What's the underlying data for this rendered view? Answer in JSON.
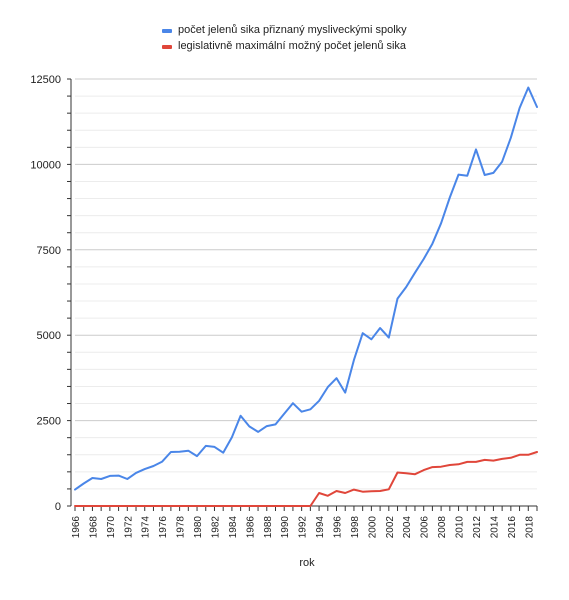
{
  "chart_data": {
    "type": "line",
    "title": "",
    "xlabel": "rok",
    "ylabel": "",
    "ylim": [
      0,
      12500
    ],
    "yticks": [
      0,
      2500,
      5000,
      7500,
      10000,
      12500
    ],
    "xlim": [
      1966,
      2019
    ],
    "xticks": [
      1966,
      1968,
      1970,
      1972,
      1974,
      1976,
      1978,
      1980,
      1982,
      1984,
      1986,
      1988,
      1990,
      1992,
      1994,
      1996,
      1998,
      2000,
      2002,
      2004,
      2006,
      2008,
      2010,
      2012,
      2014,
      2016,
      2018
    ],
    "grid": true,
    "legend": "top",
    "x": [
      1966,
      1967,
      1968,
      1969,
      1970,
      1971,
      1972,
      1973,
      1974,
      1975,
      1976,
      1977,
      1978,
      1979,
      1980,
      1981,
      1982,
      1983,
      1984,
      1985,
      1986,
      1987,
      1988,
      1989,
      1990,
      1991,
      1992,
      1993,
      1994,
      1995,
      1996,
      1997,
      1998,
      1999,
      2000,
      2001,
      2002,
      2003,
      2004,
      2005,
      2006,
      2007,
      2008,
      2009,
      2010,
      2011,
      2012,
      2013,
      2014,
      2015,
      2016,
      2017,
      2018,
      2019
    ],
    "series": [
      {
        "name": "počet jelenů sika přiznaný mysliveckými spolky",
        "color": "#4a86e8",
        "values": [
          480,
          660,
          820,
          790,
          880,
          890,
          790,
          970,
          1080,
          1170,
          1300,
          1580,
          1590,
          1620,
          1460,
          1760,
          1730,
          1560,
          2010,
          2640,
          2330,
          2170,
          2340,
          2390,
          2700,
          3010,
          2760,
          2830,
          3080,
          3480,
          3740,
          3320,
          4270,
          5060,
          4880,
          5210,
          4930,
          6070,
          6410,
          6830,
          7230,
          7680,
          8280,
          9030,
          9700,
          9670,
          10440,
          9690,
          9750,
          10080,
          10780,
          11650,
          12250,
          11680
        ]
      },
      {
        "name": "legislativně maximální možný počet jelenů sika",
        "color": "#e0463a",
        "values": [
          0,
          0,
          0,
          0,
          0,
          0,
          0,
          0,
          0,
          0,
          0,
          0,
          0,
          0,
          0,
          0,
          0,
          0,
          0,
          0,
          0,
          0,
          0,
          0,
          0,
          0,
          0,
          0,
          380,
          300,
          440,
          380,
          480,
          420,
          430,
          440,
          490,
          980,
          960,
          930,
          1050,
          1140,
          1150,
          1200,
          1220,
          1290,
          1290,
          1350,
          1330,
          1380,
          1410,
          1500,
          1500,
          1580
        ]
      }
    ]
  }
}
